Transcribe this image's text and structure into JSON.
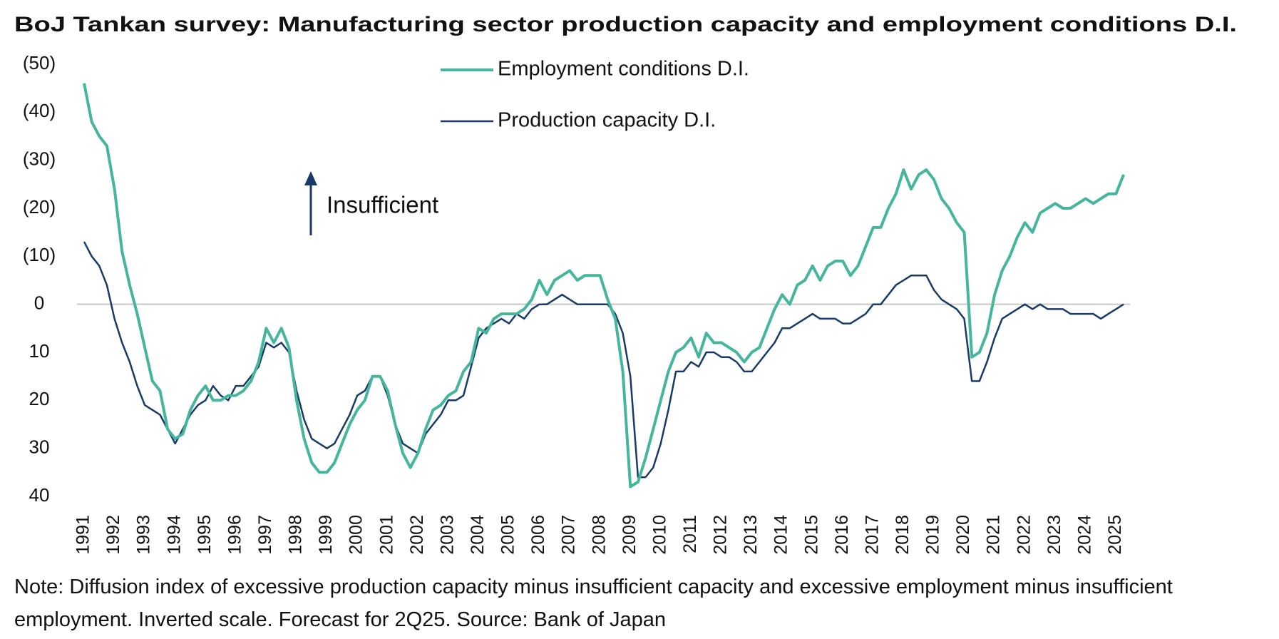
{
  "chart_data": {
    "type": "line",
    "title": "BoJ Tankan survey: Manufacturing sector production capacity and employment conditions D.I.",
    "note": "Note: Diffusion index of excessive production capacity minus insufficient capacity and excessive employment minus insufficient employment. Inverted scale. Forecast for 2Q25. Source: Bank of Japan",
    "annotation": "Insufficient",
    "categories": [
      "1991",
      null,
      null,
      null,
      "1992",
      null,
      null,
      null,
      "1993",
      null,
      null,
      null,
      "1994",
      null,
      null,
      null,
      "1995",
      null,
      null,
      null,
      "1996",
      null,
      null,
      null,
      "1997",
      null,
      null,
      null,
      "1998",
      null,
      null,
      null,
      "1999",
      null,
      null,
      null,
      "2000",
      null,
      null,
      null,
      "2001",
      null,
      null,
      null,
      "2002",
      null,
      null,
      null,
      "2003",
      null,
      null,
      null,
      "2004",
      null,
      null,
      null,
      "2005",
      null,
      null,
      null,
      "2006",
      null,
      null,
      null,
      "2007",
      null,
      null,
      null,
      "2008",
      null,
      null,
      null,
      "2009",
      null,
      null,
      null,
      "2010",
      null,
      null,
      null,
      "2011",
      null,
      null,
      null,
      "2012",
      null,
      null,
      null,
      "2013",
      null,
      null,
      null,
      "2014",
      null,
      null,
      null,
      "2015",
      null,
      null,
      null,
      "2016",
      null,
      null,
      null,
      "2017",
      null,
      null,
      null,
      "2018",
      null,
      null,
      null,
      "2019",
      null,
      null,
      null,
      "2020",
      null,
      null,
      null,
      "2021",
      null,
      null,
      null,
      "2022",
      null,
      null,
      null,
      "2023",
      null,
      null,
      null,
      "2024",
      null,
      null,
      null,
      "2025",
      null
    ],
    "series": [
      {
        "name": "Employment conditions D.I.",
        "color": "#45b69c",
        "width": 4,
        "values": [
          -46,
          -38,
          -35,
          -33,
          -24,
          -11,
          -4,
          2,
          9,
          16,
          18,
          26,
          28,
          27,
          22,
          19,
          17,
          20,
          20,
          19,
          19,
          18,
          16,
          12,
          5,
          8,
          5,
          9,
          20,
          28,
          33,
          35,
          35,
          33,
          29,
          25,
          22,
          20,
          15,
          15,
          18,
          25,
          31,
          34,
          31,
          26,
          22,
          21,
          19,
          18,
          14,
          12,
          5,
          6,
          3,
          2,
          2,
          2,
          1,
          -1,
          -5,
          -2,
          -5,
          -6,
          -7,
          -5,
          -6,
          -6,
          -6,
          -1,
          3,
          14,
          38,
          37,
          32,
          26,
          20,
          14,
          10,
          9,
          7,
          11,
          6,
          8,
          8,
          9,
          10,
          12,
          10,
          9,
          5,
          1,
          -2,
          0,
          -4,
          -5,
          -8,
          -5,
          -8,
          -9,
          -9,
          -6,
          -8,
          -12,
          -16,
          -16,
          -20,
          -23,
          -28,
          -24,
          -27,
          -28,
          -26,
          -22,
          -20,
          -17,
          -15,
          11,
          10,
          6,
          -2,
          -7,
          -10,
          -14,
          -17,
          -15,
          -19,
          -20,
          -21,
          -20,
          -20,
          -21,
          -22,
          -21,
          -22,
          -23,
          -23,
          -27
        ]
      },
      {
        "name": "Production capacity D.I.",
        "color": "#173a6a",
        "width": 2.5,
        "values": [
          -13,
          -10,
          -8,
          -4,
          3,
          8,
          12,
          17,
          21,
          22,
          23,
          26,
          29,
          26,
          23,
          21,
          20,
          17,
          19,
          20,
          17,
          17,
          15,
          13,
          8,
          9,
          8,
          10,
          18,
          24,
          28,
          29,
          30,
          29,
          26,
          23,
          19,
          18,
          15,
          15,
          19,
          25,
          29,
          30,
          31,
          27,
          25,
          23,
          20,
          20,
          19,
          13,
          7,
          5,
          4,
          3,
          4,
          2,
          3,
          1,
          0,
          0,
          -1,
          -2,
          -1,
          0,
          0,
          0,
          0,
          0,
          2,
          6,
          15,
          36,
          36,
          34,
          29,
          22,
          14,
          14,
          12,
          13,
          10,
          10,
          11,
          11,
          12,
          14,
          14,
          12,
          10,
          8,
          5,
          5,
          4,
          3,
          2,
          3,
          3,
          3,
          4,
          4,
          3,
          2,
          0,
          0,
          -2,
          -4,
          -5,
          -6,
          -6,
          -6,
          -3,
          -1,
          0,
          1,
          3,
          16,
          16,
          12,
          7,
          3,
          2,
          1,
          0,
          1,
          0,
          1,
          1,
          1,
          2,
          2,
          2,
          2,
          3,
          2,
          1,
          0
        ]
      }
    ],
    "ylim": [
      -50,
      40
    ],
    "inverted": true,
    "yticks": [
      {
        "value": -50,
        "label": "(50)"
      },
      {
        "value": -40,
        "label": "(40)"
      },
      {
        "value": -30,
        "label": "(30)"
      },
      {
        "value": -20,
        "label": "(20)"
      },
      {
        "value": -10,
        "label": "(10)"
      },
      0,
      10,
      20,
      30,
      40
    ],
    "zero_line": true
  }
}
